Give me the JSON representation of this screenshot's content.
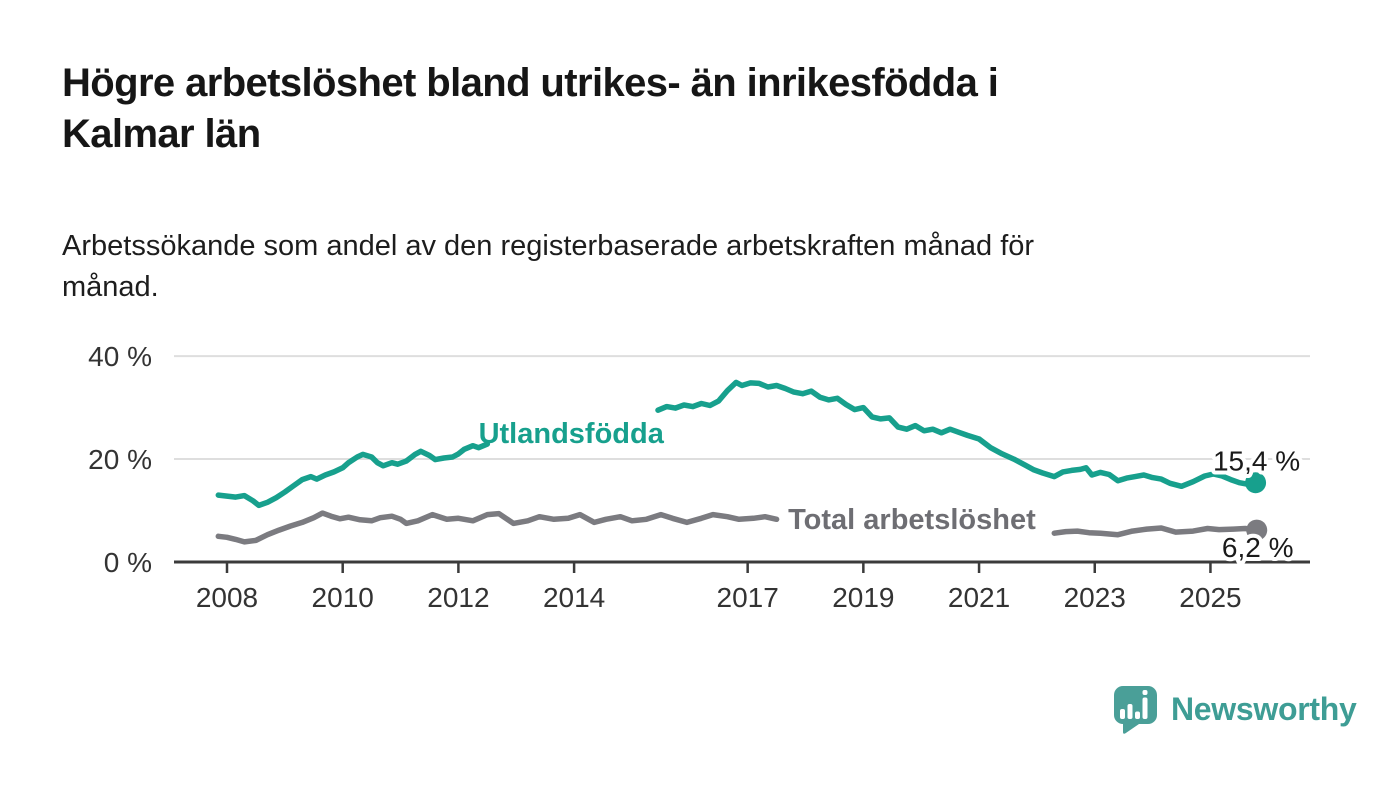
{
  "header": {
    "title_lines": [
      "Högre arbetslöshet bland utrikes- än inrikesfödda i",
      "Kalmar län"
    ],
    "subtitle_lines": [
      "Arbetssökande som andel av den registerbaserade arbetskraften månad för",
      "månad."
    ]
  },
  "branding": {
    "logo_text": "Newsworthy",
    "logo_icon": "newsworthy-speech-bubble-bar-chart-icon",
    "brand_color": "#3e9d95"
  },
  "colors": {
    "accent_teal": "#17a08d",
    "series_gray": "#7b7b80",
    "label_gray": "#6e6e73",
    "axis": "#3b3b3b",
    "gridline": "#dedede",
    "text": "#161616"
  },
  "chart_data": {
    "type": "line",
    "title": "Högre arbetslöshet bland utrikes- än inrikesfödda i Kalmar län",
    "subtitle": "Arbetssökande som andel av den registerbaserade arbetskraften månad för månad.",
    "xlabel": "",
    "ylabel": "",
    "grid": true,
    "legend_position": "inline-labels-on-lines",
    "x_axis": {
      "tick_values": [
        2008,
        2010,
        2012,
        2014,
        2017,
        2019,
        2021,
        2023,
        2025
      ],
      "tick_labels": [
        "2008",
        "2010",
        "2012",
        "2014",
        "2017",
        "2019",
        "2021",
        "2023",
        "2025"
      ],
      "range": [
        2007.8,
        2026.0
      ]
    },
    "y_axis": {
      "tick_values": [
        0,
        20,
        40
      ],
      "tick_labels": [
        "0 %",
        "20 %",
        "40 %"
      ],
      "range": [
        0,
        42
      ],
      "unit": "%"
    },
    "series": [
      {
        "name": "Utlandsfödda",
        "color": "#17a08d",
        "label_color": "#17a08d",
        "end_value": 15.4,
        "end_label": "15,4 %",
        "end_label_position": "above",
        "label_anchor": {
          "year": 2013.95,
          "pct": 23.1
        },
        "segments": [
          [
            [
              2007.85,
              13.0
            ],
            [
              2008.0,
              12.8
            ],
            [
              2008.15,
              12.6
            ],
            [
              2008.3,
              12.9
            ],
            [
              2008.45,
              11.9
            ],
            [
              2008.55,
              11.0
            ],
            [
              2008.7,
              11.6
            ],
            [
              2008.85,
              12.5
            ],
            [
              2009.0,
              13.6
            ],
            [
              2009.15,
              14.8
            ],
            [
              2009.3,
              16.0
            ],
            [
              2009.45,
              16.6
            ],
            [
              2009.55,
              16.1
            ],
            [
              2009.7,
              16.9
            ],
            [
              2009.85,
              17.5
            ],
            [
              2010.0,
              18.3
            ],
            [
              2010.1,
              19.3
            ],
            [
              2010.25,
              20.4
            ],
            [
              2010.35,
              20.9
            ],
            [
              2010.5,
              20.4
            ],
            [
              2010.6,
              19.3
            ],
            [
              2010.7,
              18.7
            ],
            [
              2010.85,
              19.3
            ],
            [
              2010.95,
              19.0
            ],
            [
              2011.1,
              19.6
            ],
            [
              2011.25,
              20.9
            ],
            [
              2011.35,
              21.5
            ],
            [
              2011.5,
              20.7
            ],
            [
              2011.6,
              19.9
            ],
            [
              2011.75,
              20.2
            ],
            [
              2011.9,
              20.4
            ],
            [
              2012.0,
              21.0
            ],
            [
              2012.1,
              21.9
            ],
            [
              2012.25,
              22.6
            ],
            [
              2012.35,
              22.2
            ],
            [
              2012.5,
              22.9
            ]
          ],
          [
            [
              2015.45,
              29.5
            ],
            [
              2015.6,
              30.2
            ],
            [
              2015.75,
              29.9
            ],
            [
              2015.9,
              30.5
            ],
            [
              2016.05,
              30.2
            ],
            [
              2016.2,
              30.8
            ],
            [
              2016.35,
              30.4
            ],
            [
              2016.5,
              31.3
            ],
            [
              2016.65,
              33.3
            ],
            [
              2016.8,
              34.9
            ],
            [
              2016.9,
              34.3
            ],
            [
              2017.05,
              34.8
            ],
            [
              2017.2,
              34.7
            ],
            [
              2017.35,
              34.0
            ],
            [
              2017.5,
              34.3
            ],
            [
              2017.65,
              33.7
            ],
            [
              2017.8,
              33.0
            ],
            [
              2017.95,
              32.7
            ],
            [
              2018.1,
              33.2
            ],
            [
              2018.25,
              32.0
            ],
            [
              2018.4,
              31.5
            ],
            [
              2018.55,
              31.8
            ],
            [
              2018.7,
              30.6
            ],
            [
              2018.85,
              29.6
            ],
            [
              2019.0,
              30.0
            ],
            [
              2019.15,
              28.2
            ],
            [
              2019.3,
              27.8
            ],
            [
              2019.45,
              28.0
            ],
            [
              2019.6,
              26.2
            ],
            [
              2019.75,
              25.8
            ],
            [
              2019.9,
              26.5
            ],
            [
              2020.05,
              25.5
            ],
            [
              2020.2,
              25.8
            ],
            [
              2020.35,
              25.1
            ],
            [
              2020.5,
              25.8
            ],
            [
              2020.65,
              25.2
            ],
            [
              2020.8,
              24.6
            ],
            [
              2021.0,
              23.9
            ],
            [
              2021.2,
              22.2
            ],
            [
              2021.4,
              21.0
            ],
            [
              2021.6,
              20.0
            ],
            [
              2021.8,
              18.8
            ],
            [
              2021.95,
              17.9
            ],
            [
              2022.1,
              17.3
            ],
            [
              2022.3,
              16.6
            ],
            [
              2022.45,
              17.5
            ],
            [
              2022.6,
              17.8
            ],
            [
              2022.75,
              18.0
            ],
            [
              2022.85,
              18.3
            ],
            [
              2022.95,
              16.9
            ],
            [
              2023.1,
              17.4
            ],
            [
              2023.25,
              17.0
            ],
            [
              2023.4,
              15.8
            ],
            [
              2023.55,
              16.3
            ],
            [
              2023.7,
              16.6
            ],
            [
              2023.85,
              16.9
            ],
            [
              2024.0,
              16.4
            ],
            [
              2024.15,
              16.1
            ],
            [
              2024.3,
              15.3
            ],
            [
              2024.5,
              14.7
            ],
            [
              2024.7,
              15.6
            ],
            [
              2024.9,
              16.7
            ],
            [
              2025.05,
              17.1
            ],
            [
              2025.2,
              16.7
            ],
            [
              2025.35,
              16.0
            ],
            [
              2025.5,
              15.4
            ],
            [
              2025.65,
              15.1
            ],
            [
              2025.78,
              15.4
            ]
          ]
        ]
      },
      {
        "name": "Total arbetslöshet",
        "color": "#7b7b80",
        "label_color": "#6e6e73",
        "end_value": 6.2,
        "end_label": "6,2 %",
        "end_label_position": "below",
        "label_anchor": {
          "year": 2019.84,
          "pct": 6.4
        },
        "segments": [
          [
            [
              2007.85,
              5.0
            ],
            [
              2008.0,
              4.8
            ],
            [
              2008.15,
              4.4
            ],
            [
              2008.3,
              3.9
            ],
            [
              2008.5,
              4.2
            ],
            [
              2008.7,
              5.3
            ],
            [
              2008.9,
              6.2
            ],
            [
              2009.1,
              7.0
            ],
            [
              2009.3,
              7.7
            ],
            [
              2009.5,
              8.6
            ],
            [
              2009.65,
              9.5
            ],
            [
              2009.8,
              8.9
            ],
            [
              2009.95,
              8.4
            ],
            [
              2010.1,
              8.7
            ],
            [
              2010.3,
              8.2
            ],
            [
              2010.5,
              8.0
            ],
            [
              2010.65,
              8.6
            ],
            [
              2010.85,
              8.9
            ],
            [
              2011.0,
              8.3
            ],
            [
              2011.1,
              7.5
            ],
            [
              2011.3,
              8.0
            ],
            [
              2011.55,
              9.2
            ],
            [
              2011.8,
              8.3
            ],
            [
              2012.0,
              8.5
            ],
            [
              2012.25,
              8.0
            ],
            [
              2012.5,
              9.2
            ],
            [
              2012.7,
              9.4
            ],
            [
              2012.95,
              7.5
            ],
            [
              2013.2,
              8.0
            ],
            [
              2013.4,
              8.8
            ],
            [
              2013.65,
              8.3
            ],
            [
              2013.9,
              8.5
            ],
            [
              2014.1,
              9.2
            ],
            [
              2014.35,
              7.7
            ],
            [
              2014.55,
              8.3
            ],
            [
              2014.8,
              8.8
            ],
            [
              2015.0,
              8.0
            ],
            [
              2015.25,
              8.3
            ],
            [
              2015.5,
              9.2
            ],
            [
              2015.7,
              8.5
            ],
            [
              2015.95,
              7.7
            ],
            [
              2016.2,
              8.5
            ],
            [
              2016.4,
              9.2
            ],
            [
              2016.65,
              8.8
            ],
            [
              2016.85,
              8.3
            ],
            [
              2017.1,
              8.5
            ],
            [
              2017.3,
              8.8
            ],
            [
              2017.5,
              8.3
            ]
          ],
          [
            [
              2022.3,
              5.6
            ],
            [
              2022.5,
              5.9
            ],
            [
              2022.7,
              6.0
            ],
            [
              2022.9,
              5.7
            ],
            [
              2023.1,
              5.6
            ],
            [
              2023.4,
              5.3
            ],
            [
              2023.65,
              6.0
            ],
            [
              2023.9,
              6.4
            ],
            [
              2024.15,
              6.6
            ],
            [
              2024.4,
              5.8
            ],
            [
              2024.7,
              6.0
            ],
            [
              2024.95,
              6.5
            ],
            [
              2025.15,
              6.3
            ],
            [
              2025.4,
              6.4
            ],
            [
              2025.6,
              6.5
            ],
            [
              2025.8,
              6.2
            ]
          ]
        ]
      }
    ]
  }
}
